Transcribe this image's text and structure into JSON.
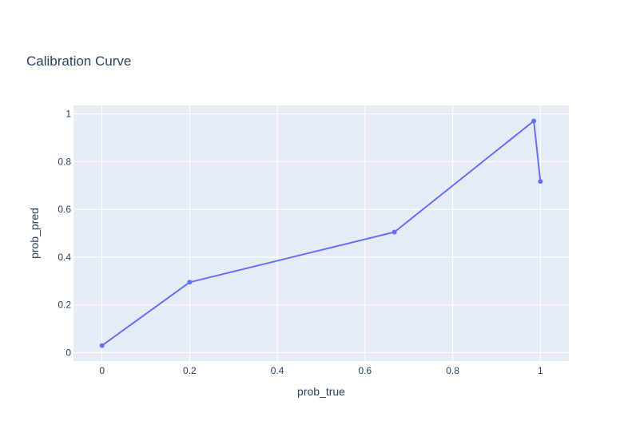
{
  "colors": {
    "plot_background": "#e5ecf6",
    "grid": "#ffffff",
    "series": "#636efa",
    "text": "#2a3f5f"
  },
  "chart_data": {
    "type": "line",
    "title": "Calibration Curve",
    "xlabel": "prob_true",
    "ylabel": "prob_pred",
    "xlim": [
      -0.065,
      1.065
    ],
    "ylim": [
      -0.035,
      1.035
    ],
    "x_ticks": [
      0,
      0.2,
      0.4,
      0.6,
      0.8,
      1
    ],
    "x_tick_labels": [
      "0",
      "0.2",
      "0.4",
      "0.6",
      "0.8",
      "1"
    ],
    "y_ticks": [
      0,
      0.2,
      0.4,
      0.6,
      0.8,
      1
    ],
    "y_tick_labels": [
      "0",
      "0.2",
      "0.4",
      "0.6",
      "0.8",
      "1"
    ],
    "grid": true,
    "mode": "lines+markers",
    "series": [
      {
        "x": [
          0,
          0.2,
          0.667,
          0.985,
          1.0
        ],
        "y": [
          0.03,
          0.295,
          0.505,
          0.97,
          0.717
        ]
      }
    ]
  }
}
